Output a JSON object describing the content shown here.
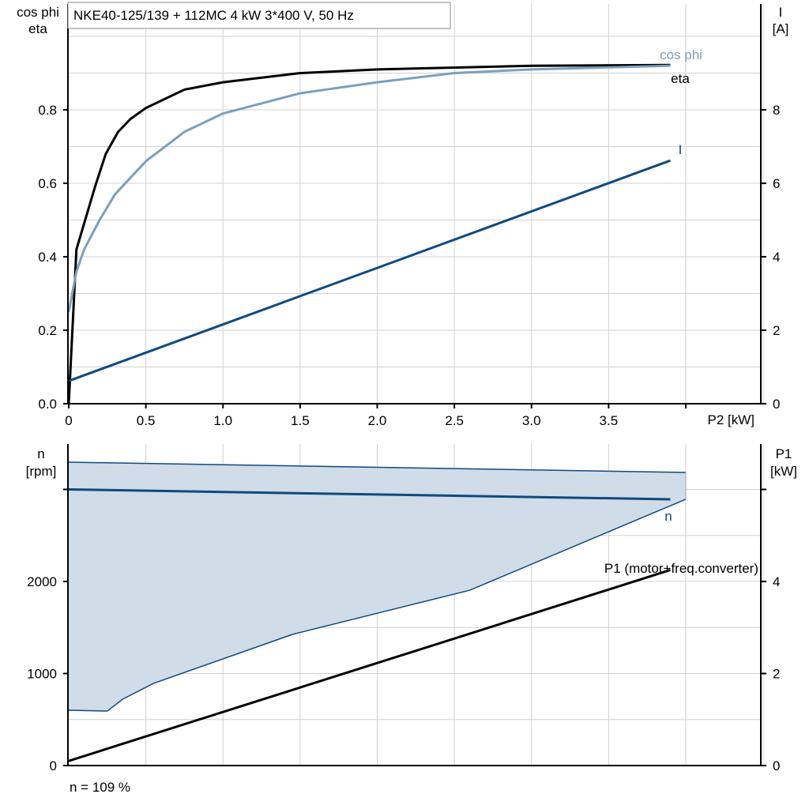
{
  "title": "NKE40-125/139 + 112MC   4 kW   3*400 V, 50 Hz",
  "footer": "n = 109 %",
  "colors": {
    "eta": "#000000",
    "cos_phi": "#7aa0c0",
    "current": "#0e4a80",
    "speed": "#0e4a80",
    "band_fill": "#d0dce8",
    "p1": "#000000",
    "grid": "#d0d0d0"
  },
  "chart_data": [
    {
      "type": "line",
      "xlabel": "P2 [kW]",
      "ylabel_left": [
        "cos phi",
        "eta"
      ],
      "ylabel_right": [
        "I",
        "[A]"
      ],
      "xlim": [
        0,
        4.0
      ],
      "ylim_left": [
        0,
        1.0
      ],
      "ylim_right": [
        0,
        10
      ],
      "x_ticks": [
        "0",
        "0.5",
        "1.0",
        "1.5",
        "2.0",
        "2.5",
        "3.0",
        "3.5"
      ],
      "y_left_ticks": [
        "0.0",
        "0.2",
        "0.4",
        "0.6",
        "0.8"
      ],
      "y_right_ticks": [
        "0",
        "2",
        "4",
        "6",
        "8"
      ],
      "grid": true,
      "series": [
        {
          "name": "eta",
          "axis": "left",
          "x": [
            0,
            0.05,
            0.17,
            0.24,
            0.32,
            0.4,
            0.5,
            0.75,
            1.0,
            1.5,
            2.0,
            3.0,
            3.9
          ],
          "y": [
            0,
            0.42,
            0.59,
            0.68,
            0.74,
            0.775,
            0.805,
            0.855,
            0.875,
            0.9,
            0.91,
            0.92,
            0.922
          ]
        },
        {
          "name": "cos phi",
          "axis": "left",
          "x": [
            0,
            0.05,
            0.1,
            0.2,
            0.3,
            0.5,
            0.75,
            1.0,
            1.5,
            2.0,
            2.5,
            3.0,
            3.9
          ],
          "y": [
            0.25,
            0.36,
            0.42,
            0.5,
            0.57,
            0.66,
            0.74,
            0.79,
            0.845,
            0.875,
            0.9,
            0.91,
            0.92
          ]
        },
        {
          "name": "I",
          "axis": "right",
          "x": [
            0,
            3.9
          ],
          "y": [
            0.62,
            6.62
          ]
        }
      ]
    },
    {
      "type": "line",
      "ylabel_left": [
        "n",
        "[rpm]"
      ],
      "ylabel_right": [
        "P1",
        "[kW]"
      ],
      "xlim": [
        0,
        4.0
      ],
      "ylim_left": [
        0,
        3500
      ],
      "ylim_right": [
        0,
        7
      ],
      "y_left_ticks": [
        "0",
        "1000",
        "2000"
      ],
      "y_right_ticks": [
        "0",
        "2",
        "4"
      ],
      "grid": true,
      "band": {
        "upper_x": [
          0,
          4.0
        ],
        "upper_y": [
          3296,
          3185
        ],
        "lower_x": [
          0,
          0.25,
          0.35,
          0.55,
          1.45,
          2.6,
          4.0
        ],
        "lower_y": [
          601,
          592,
          721,
          893,
          1425,
          1905,
          2893
        ]
      },
      "series": [
        {
          "name": "n",
          "axis": "left",
          "x": [
            0,
            3.9
          ],
          "y": [
            3000,
            2893
          ]
        },
        {
          "name": "P1 (motor+freq.converter)",
          "axis": "right",
          "x": [
            0,
            3.9
          ],
          "y": [
            0.1,
            4.25
          ]
        }
      ]
    }
  ]
}
